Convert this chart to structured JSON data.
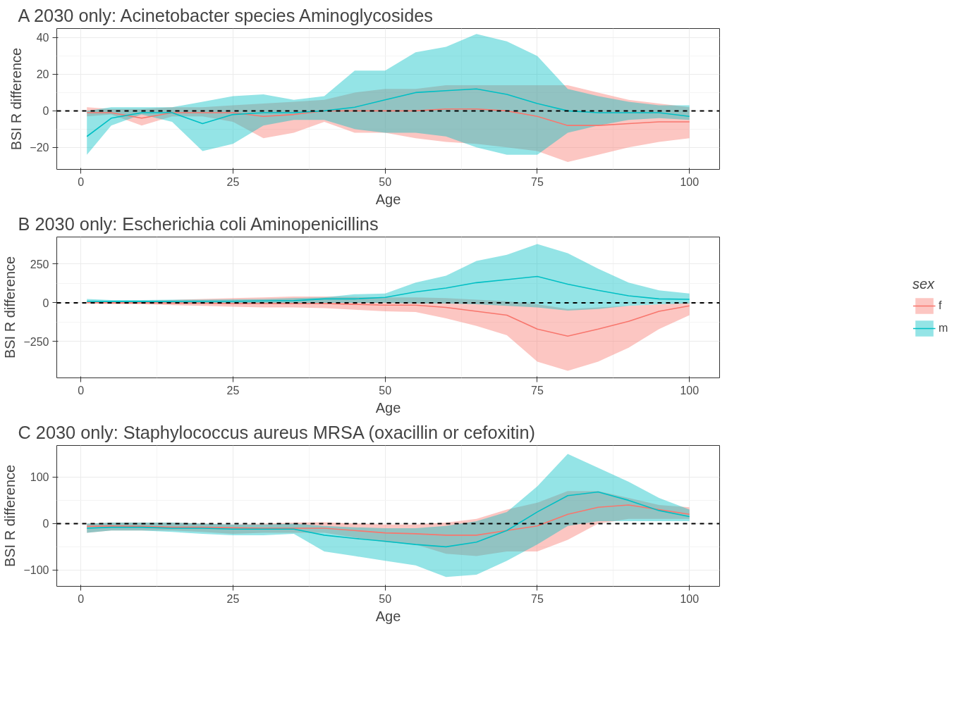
{
  "chart_data": [
    {
      "type": "line",
      "title": "A    2030 only: Acinetobacter species Aminoglycosides",
      "xlabel": "Age",
      "ylabel": "BSI R difference",
      "x": [
        1,
        5,
        10,
        15,
        20,
        25,
        30,
        35,
        40,
        45,
        50,
        55,
        60,
        65,
        70,
        75,
        80,
        85,
        90,
        95,
        100
      ],
      "xlim": [
        -3.95,
        104.95
      ],
      "ylim": [
        -32,
        45
      ],
      "xticks": [
        0,
        25,
        50,
        75,
        100
      ],
      "yticks": [
        -20,
        0,
        20,
        40
      ],
      "grid": true,
      "ref_lines": [
        {
          "axis": "y",
          "value": 0,
          "label": null,
          "color": "#000000",
          "line_style": "dashed"
        }
      ],
      "series": [
        {
          "color": "#f8766d",
          "values": [
            -1,
            -1,
            -4,
            -1,
            -1,
            -1,
            -3,
            -2,
            0,
            0,
            0,
            0,
            1,
            1,
            0,
            -3,
            -8,
            -8,
            -7,
            -6,
            -6
          ],
          "lower": [
            -3,
            -2,
            -8,
            -3,
            -3,
            -6,
            -15,
            -12,
            -6,
            -12,
            -12,
            -15,
            -17,
            -18,
            -20,
            -22,
            -28,
            -24,
            -20,
            -17,
            -15
          ],
          "upper": [
            2,
            1,
            1,
            2,
            2,
            3,
            4,
            5,
            6,
            10,
            12,
            12,
            14,
            14,
            14,
            14,
            14,
            10,
            6,
            4,
            2
          ]
        },
        {
          "color": "#00bfc4",
          "values": [
            -14,
            -4,
            -1,
            -1,
            -7,
            -2,
            -1,
            -1,
            0,
            2,
            6,
            10,
            11,
            12,
            9,
            4,
            0,
            -1,
            -1,
            -1,
            -3
          ],
          "lower": [
            -24,
            -8,
            -2,
            -6,
            -22,
            -18,
            -8,
            -5,
            -5,
            -10,
            -12,
            -12,
            -14,
            -20,
            -24,
            -24,
            -12,
            -8,
            -5,
            -4,
            -5
          ],
          "upper": [
            0,
            2,
            2,
            2,
            5,
            8,
            9,
            6,
            8,
            22,
            22,
            32,
            35,
            42,
            38,
            30,
            12,
            8,
            5,
            3,
            3
          ]
        }
      ]
    },
    {
      "type": "line",
      "title": "B    2030 only: Escherichia coli Aminopenicillins",
      "xlabel": "Age",
      "ylabel": "BSI R difference",
      "legend": "right",
      "legend_title": "sex",
      "x": [
        1,
        5,
        10,
        15,
        20,
        25,
        30,
        35,
        40,
        45,
        50,
        55,
        60,
        65,
        70,
        75,
        80,
        85,
        90,
        95,
        100
      ],
      "xlim": [
        -3.95,
        104.95
      ],
      "ylim": [
        -485,
        425
      ],
      "xticks": [
        0,
        25,
        50,
        75,
        100
      ],
      "yticks": [
        -250,
        0,
        250
      ],
      "grid": true,
      "ref_lines": [
        {
          "axis": "y",
          "value": 0,
          "label": null,
          "color": "#000000",
          "line_style": "dashed"
        }
      ],
      "series": [
        {
          "name": "f",
          "color": "#f8766d",
          "values": [
            2,
            0,
            0,
            -2,
            -3,
            -5,
            -5,
            -5,
            -5,
            -10,
            -15,
            -15,
            -30,
            -55,
            -80,
            -170,
            -215,
            -170,
            -120,
            -55,
            -20
          ],
          "lower": [
            -5,
            -8,
            -10,
            -15,
            -20,
            -25,
            -30,
            -30,
            -35,
            -45,
            -55,
            -60,
            -100,
            -150,
            -210,
            -380,
            -440,
            -380,
            -290,
            -170,
            -80
          ],
          "upper": [
            5,
            10,
            12,
            18,
            25,
            30,
            35,
            40,
            40,
            38,
            35,
            35,
            30,
            20,
            10,
            -10,
            -40,
            -30,
            -20,
            -10,
            0
          ]
        },
        {
          "name": "m",
          "color": "#00bfc4",
          "values": [
            10,
            8,
            8,
            8,
            10,
            10,
            12,
            14,
            25,
            25,
            35,
            70,
            95,
            130,
            150,
            170,
            120,
            80,
            45,
            25,
            22
          ],
          "lower": [
            0,
            -2,
            -3,
            -5,
            -5,
            -5,
            -5,
            -5,
            0,
            0,
            0,
            -5,
            -5,
            -10,
            -20,
            -30,
            -50,
            -40,
            -20,
            -10,
            -5
          ],
          "upper": [
            25,
            18,
            18,
            20,
            20,
            22,
            25,
            30,
            35,
            55,
            60,
            130,
            175,
            270,
            310,
            380,
            320,
            220,
            130,
            80,
            60
          ]
        }
      ]
    },
    {
      "type": "line",
      "title": "C    2030 only: Staphylococcus aureus MRSA (oxacillin or cefoxitin)",
      "xlabel": "Age",
      "ylabel": "BSI R difference",
      "x": [
        1,
        5,
        10,
        15,
        20,
        25,
        30,
        35,
        40,
        45,
        50,
        55,
        60,
        65,
        70,
        75,
        80,
        85,
        90,
        95,
        100
      ],
      "xlim": [
        -3.95,
        104.95
      ],
      "ylim": [
        -135,
        168
      ],
      "xticks": [
        0,
        25,
        50,
        75,
        100
      ],
      "yticks": [
        -100,
        0,
        100
      ],
      "grid": true,
      "ref_lines": [
        {
          "axis": "y",
          "value": 0,
          "label": null,
          "color": "#000000",
          "line_style": "dashed"
        }
      ],
      "series": [
        {
          "color": "#f8766d",
          "values": [
            -6,
            -5,
            -6,
            -8,
            -8,
            -9,
            -10,
            -10,
            -10,
            -15,
            -20,
            -22,
            -25,
            -25,
            -15,
            -5,
            20,
            35,
            40,
            30,
            20
          ],
          "lower": [
            -20,
            -15,
            -15,
            -15,
            -18,
            -22,
            -20,
            -20,
            -20,
            -30,
            -40,
            -45,
            -65,
            -70,
            -60,
            -60,
            -35,
            0,
            10,
            10,
            10
          ],
          "upper": [
            0,
            2,
            2,
            2,
            0,
            -2,
            0,
            2,
            3,
            0,
            -2,
            -2,
            2,
            10,
            30,
            45,
            70,
            70,
            55,
            40,
            35
          ]
        },
        {
          "color": "#00bfc4",
          "values": [
            -10,
            -8,
            -8,
            -10,
            -10,
            -12,
            -12,
            -12,
            -25,
            -32,
            -38,
            -45,
            -50,
            -40,
            -15,
            25,
            60,
            68,
            50,
            28,
            15
          ],
          "lower": [
            -20,
            -15,
            -15,
            -18,
            -22,
            -25,
            -25,
            -22,
            -60,
            -70,
            -80,
            -90,
            -115,
            -110,
            -80,
            -45,
            -5,
            5,
            5,
            5,
            5
          ],
          "upper": [
            0,
            2,
            2,
            2,
            0,
            -2,
            -2,
            0,
            -5,
            -8,
            -10,
            -10,
            -5,
            5,
            25,
            80,
            150,
            120,
            90,
            55,
            30
          ]
        }
      ]
    }
  ]
}
